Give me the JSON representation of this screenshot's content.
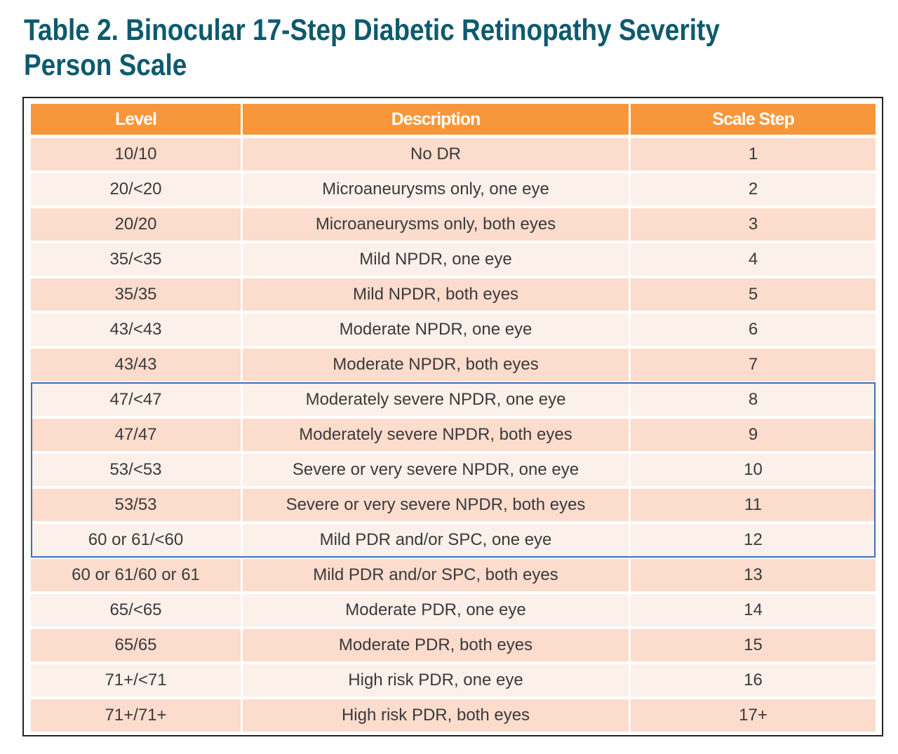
{
  "title": "Table 2. Binocular 17-Step Diabetic Retinopathy Severity Person Scale",
  "title_lines": [
    "Table 2. Binocular 17-Step Diabetic Retinopathy Severity",
    "Person Scale"
  ],
  "colors": {
    "title": "#0d5a6e",
    "header": "#f7963a",
    "row_dark": "#fcdccd",
    "row_light": "#fcf0ea",
    "highlight_border": "#3d6fb8"
  },
  "table": {
    "headers": [
      "Level",
      "Description",
      "Scale Step"
    ],
    "rows": [
      [
        "10/10",
        "No DR",
        "1"
      ],
      [
        "20/<20",
        "Microaneurysms only, one eye",
        "2"
      ],
      [
        "20/20",
        "Microaneurysms only, both eyes",
        "3"
      ],
      [
        "35/<35",
        "Mild NPDR, one eye",
        "4"
      ],
      [
        "35/35",
        "Mild NPDR, both eyes",
        "5"
      ],
      [
        "43/<43",
        "Moderate NPDR, one eye",
        "6"
      ],
      [
        "43/43",
        "Moderate NPDR, both eyes",
        "7"
      ],
      [
        "47/<47",
        "Moderately severe NPDR, one eye",
        "8"
      ],
      [
        "47/47",
        "Moderately severe NPDR, both eyes",
        "9"
      ],
      [
        "53/<53",
        "Severe or very severe NPDR, one eye",
        "10"
      ],
      [
        "53/53",
        "Severe or very severe NPDR, both eyes",
        "11"
      ],
      [
        "60 or 61/<60",
        "Mild PDR and/or SPC, one eye",
        "12"
      ],
      [
        "60 or 61/60 or 61",
        "Mild PDR and/or SPC, both eyes",
        "13"
      ],
      [
        "65/<65",
        "Moderate PDR, one eye",
        "14"
      ],
      [
        "65/65",
        "Moderate PDR, both eyes",
        "15"
      ],
      [
        "71+/<71",
        "High risk PDR, one eye",
        "16"
      ],
      [
        "71+/71+",
        "High risk PDR, both eyes",
        "17+"
      ]
    ],
    "highlighted_steps": [
      "8",
      "9",
      "10",
      "11",
      "12"
    ]
  }
}
